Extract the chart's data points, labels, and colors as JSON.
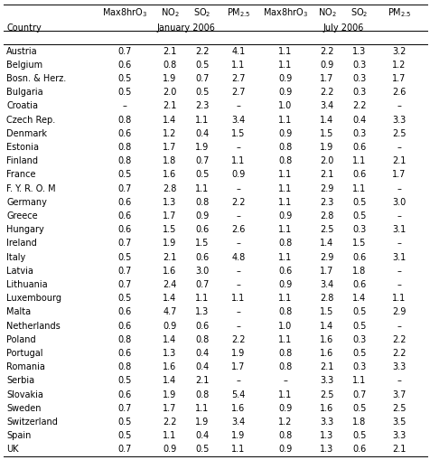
{
  "countries": [
    "Austria",
    "Belgium",
    "Bosn. & Herz.",
    "Bulgaria",
    "Croatia",
    "Czech Rep.",
    "Denmark",
    "Estonia",
    "Finland",
    "France",
    "F. Y. R. O. M",
    "Germany",
    "Greece",
    "Hungary",
    "Ireland",
    "Italy",
    "Latvia",
    "Lithuania",
    "Luxembourg",
    "Malta",
    "Netherlands",
    "Poland",
    "Portugal",
    "Romania",
    "Serbia",
    "Slovakia",
    "Sweden",
    "Switzerland",
    "Spain",
    "UK"
  ],
  "jan_max8hro3": [
    "0.7",
    "0.6",
    "0.5",
    "0.5",
    "–",
    "0.8",
    "0.6",
    "0.8",
    "0.8",
    "0.5",
    "0.7",
    "0.6",
    "0.6",
    "0.6",
    "0.7",
    "0.5",
    "0.7",
    "0.7",
    "0.5",
    "0.6",
    "0.6",
    "0.8",
    "0.6",
    "0.8",
    "0.5",
    "0.6",
    "0.7",
    "0.5",
    "0.5",
    "0.7"
  ],
  "jan_no2": [
    "2.1",
    "0.8",
    "1.9",
    "2.0",
    "2.1",
    "1.4",
    "1.2",
    "1.7",
    "1.8",
    "1.6",
    "2.8",
    "1.3",
    "1.7",
    "1.5",
    "1.9",
    "2.1",
    "1.6",
    "2.4",
    "1.4",
    "4.7",
    "0.9",
    "1.4",
    "1.3",
    "1.6",
    "1.4",
    "1.9",
    "1.7",
    "2.2",
    "1.1",
    "0.9"
  ],
  "jan_so2": [
    "2.2",
    "0.5",
    "0.7",
    "0.5",
    "2.3",
    "1.1",
    "0.4",
    "1.9",
    "0.7",
    "0.5",
    "1.1",
    "0.8",
    "0.9",
    "0.6",
    "1.5",
    "0.6",
    "3.0",
    "0.7",
    "1.1",
    "1.3",
    "0.6",
    "0.8",
    "0.4",
    "0.4",
    "2.1",
    "0.8",
    "1.1",
    "1.9",
    "0.4",
    "0.5"
  ],
  "jan_pm25": [
    "4.1",
    "1.1",
    "2.7",
    "2.7",
    "–",
    "3.4",
    "1.5",
    "–",
    "1.1",
    "0.9",
    "–",
    "2.2",
    "–",
    "2.6",
    "–",
    "4.8",
    "–",
    "–",
    "1.1",
    "–",
    "–",
    "2.2",
    "1.9",
    "1.7",
    "–",
    "5.4",
    "1.6",
    "3.4",
    "1.9",
    "1.1"
  ],
  "jul_max8hro3": [
    "1.1",
    "1.1",
    "0.9",
    "0.9",
    "1.0",
    "1.1",
    "0.9",
    "0.8",
    "0.8",
    "1.1",
    "1.1",
    "1.1",
    "0.9",
    "1.1",
    "0.8",
    "1.1",
    "0.6",
    "0.9",
    "1.1",
    "0.8",
    "1.0",
    "1.1",
    "0.8",
    "0.8",
    "–",
    "1.1",
    "0.9",
    "1.2",
    "0.8",
    "0.9"
  ],
  "jul_no2": [
    "2.2",
    "0.9",
    "1.7",
    "2.2",
    "3.4",
    "1.4",
    "1.5",
    "1.9",
    "2.0",
    "2.1",
    "2.9",
    "2.3",
    "2.8",
    "2.5",
    "1.4",
    "2.9",
    "1.7",
    "3.4",
    "2.8",
    "1.5",
    "1.4",
    "1.6",
    "1.6",
    "2.1",
    "3.3",
    "2.5",
    "1.6",
    "3.3",
    "1.3",
    "1.3"
  ],
  "jul_so2": [
    "1.3",
    "0.3",
    "0.3",
    "0.3",
    "2.2",
    "0.4",
    "0.3",
    "0.6",
    "1.1",
    "0.6",
    "1.1",
    "0.5",
    "0.5",
    "0.3",
    "1.5",
    "0.6",
    "1.8",
    "0.6",
    "1.4",
    "0.5",
    "0.5",
    "0.3",
    "0.5",
    "0.3",
    "1.1",
    "0.7",
    "0.5",
    "1.8",
    "0.5",
    "0.6"
  ],
  "jul_pm25": [
    "3.2",
    "1.2",
    "1.7",
    "2.6",
    "–",
    "3.3",
    "2.5",
    "–",
    "2.1",
    "1.7",
    "–",
    "3.0",
    "–",
    "3.1",
    "–",
    "3.1",
    "–",
    "–",
    "1.1",
    "2.9",
    "–",
    "2.2",
    "2.2",
    "3.3",
    "–",
    "3.7",
    "2.5",
    "3.5",
    "3.3",
    "2.1"
  ],
  "fig_width": 4.77,
  "fig_height": 5.09,
  "fs": 7.0,
  "fs_header": 7.0
}
